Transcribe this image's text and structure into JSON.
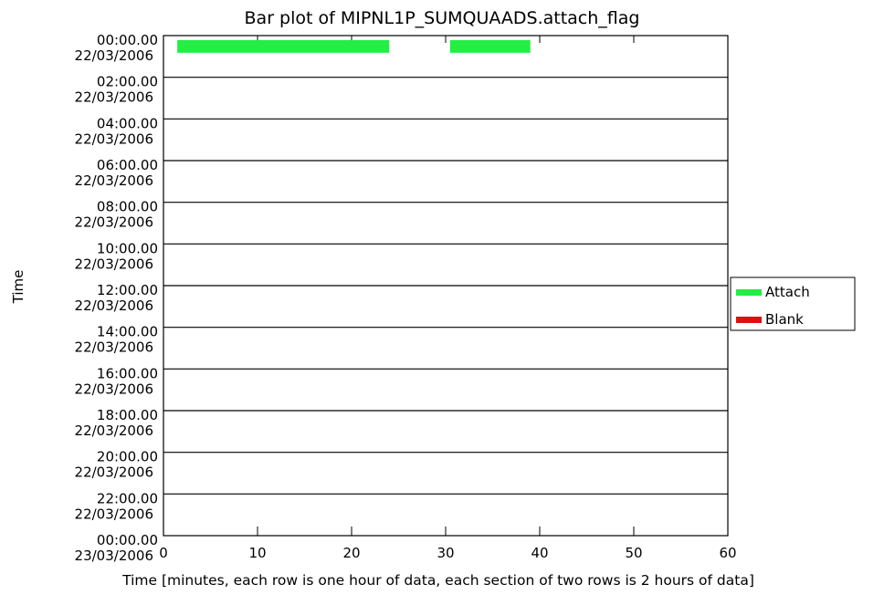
{
  "chart_data": {
    "type": "bar",
    "title": "Bar plot of MIPNL1P_SUMQUAADS.attach_flag",
    "xlabel": "Time [minutes, each row is one hour of data, each section of two rows is 2 hours of data]",
    "ylabel": "Time",
    "xlim": [
      0,
      60
    ],
    "x_ticks": [
      "0",
      "10",
      "20",
      "30",
      "40",
      "50",
      "60"
    ],
    "y_ticks": [
      [
        "00:00.00",
        "22/03/2006"
      ],
      [
        "02:00.00",
        "22/03/2006"
      ],
      [
        "04:00.00",
        "22/03/2006"
      ],
      [
        "06:00.00",
        "22/03/2006"
      ],
      [
        "08:00.00",
        "22/03/2006"
      ],
      [
        "10:00.00",
        "22/03/2006"
      ],
      [
        "12:00.00",
        "22/03/2006"
      ],
      [
        "14:00.00",
        "22/03/2006"
      ],
      [
        "16:00.00",
        "22/03/2006"
      ],
      [
        "18:00.00",
        "22/03/2006"
      ],
      [
        "20:00.00",
        "22/03/2006"
      ],
      [
        "22:00.00",
        "22/03/2006"
      ],
      [
        "00:00.00",
        "23/03/2006"
      ]
    ],
    "row_count": 24,
    "legend": {
      "placement": "right",
      "entries": [
        {
          "label": "Attach",
          "color": "#22ee44"
        },
        {
          "label": "Blank",
          "color": "#dd1111"
        }
      ]
    },
    "bars": [
      {
        "row": 0,
        "start": 0.5,
        "end": 24.0,
        "category": "Attach"
      },
      {
        "row": 0,
        "start": 29.5,
        "end": 39.0,
        "category": "Attach"
      }
    ],
    "grid": false
  }
}
